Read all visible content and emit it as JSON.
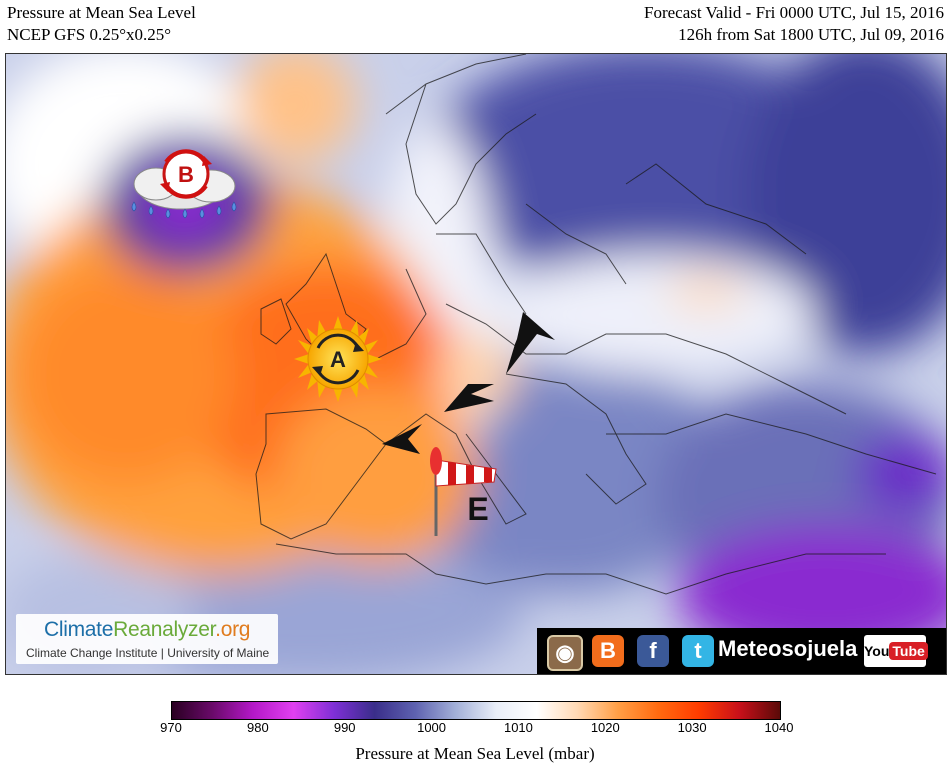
{
  "header": {
    "title": "Pressure at Mean Sea Level",
    "model": "NCEP GFS 0.25°x0.25°",
    "forecast_valid": "Forecast Valid - Fri 0000 UTC, Jul 15, 2016",
    "forecast_from": "126h from Sat 1800 UTC, Jul 09, 2016"
  },
  "map": {
    "markers": {
      "low_letter": "B",
      "high_letter": "A",
      "wind_letter": "E"
    }
  },
  "branding": {
    "logo_part1": "Climate",
    "logo_part2": "Reanalyzer",
    "logo_part3": ".org",
    "institute": "Climate Change Institute | University of Maine"
  },
  "social": {
    "handle": "Meteosojuela",
    "youtube_you": "You",
    "youtube_tube": "Tube"
  },
  "colorbar": {
    "title": "Pressure at Mean Sea Level (mbar)",
    "ticks": [
      "970",
      "980",
      "990",
      "1000",
      "1010",
      "1020",
      "1030",
      "1040"
    ],
    "min": 970,
    "max": 1040,
    "colors": [
      "#2a0022",
      "#6a0a6a",
      "#b418c8",
      "#e040f0",
      "#7e2fd6",
      "#3a2e8a",
      "#5e62b0",
      "#a3b0d8",
      "#e9eef8",
      "#ffffff",
      "#ffd9b4",
      "#ff9f46",
      "#ff6a10",
      "#ff3c00",
      "#c8101a",
      "#5a0a08"
    ]
  }
}
